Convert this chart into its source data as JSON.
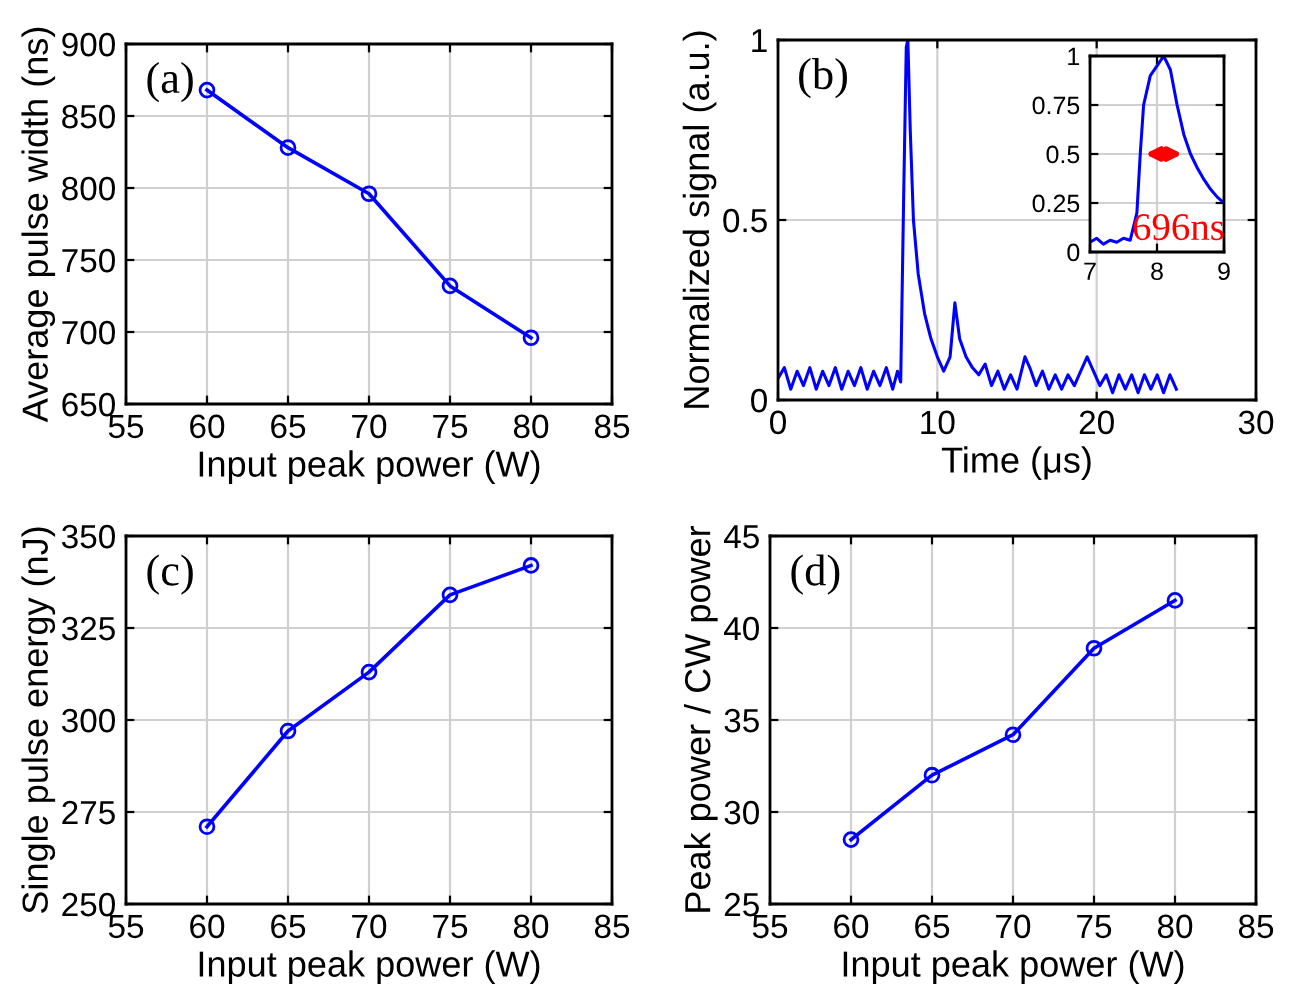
{
  "chart_data": [
    {
      "type": "line",
      "xlabel": "Input peak power (W)",
      "ylabel": "Average pulse width (ns)",
      "x": [
        60,
        65,
        70,
        75,
        80
      ],
      "series": [
        {
          "color": "#0000ff",
          "values": [
            868,
            828,
            796,
            732,
            696
          ]
        }
      ],
      "xlim": [
        55,
        85
      ],
      "xticks": [
        55,
        60,
        65,
        70,
        75,
        80,
        85
      ],
      "ylim": [
        650,
        900
      ],
      "yticks": [
        650,
        700,
        750,
        800,
        850,
        900
      ],
      "grid": true,
      "marker": "circle",
      "annotations": [
        "(a)"
      ]
    },
    {
      "type": "line",
      "xlabel": "Time (μs)",
      "ylabel": "Normalized signal (a.u.)",
      "series": [
        {
          "color": "#0000ff",
          "x": [
            0,
            0.4,
            0.8,
            1.2,
            1.6,
            2,
            2.4,
            2.8,
            3.2,
            3.6,
            4,
            4.4,
            4.8,
            5.2,
            5.6,
            6,
            6.4,
            6.8,
            7.2,
            7.5,
            7.7,
            7.9,
            8.05,
            8.15,
            8.3,
            8.5,
            8.8,
            9.2,
            9.6,
            10,
            10.4,
            10.8,
            11.1,
            11.4,
            11.8,
            12.2,
            12.6,
            13,
            13.4,
            13.8,
            14.2,
            14.6,
            15,
            15.5,
            15.8,
            16.2,
            16.6,
            17,
            17.4,
            17.8,
            18.2,
            18.6,
            19,
            19.4,
            19.8,
            20.2,
            20.6,
            21,
            21.4,
            21.8,
            22.2,
            22.6,
            23,
            23.4,
            23.8,
            24.2,
            24.6,
            25
          ],
          "values": [
            0.06,
            0.09,
            0.03,
            0.08,
            0.04,
            0.09,
            0.03,
            0.08,
            0.04,
            0.09,
            0.03,
            0.08,
            0.04,
            0.09,
            0.03,
            0.08,
            0.04,
            0.09,
            0.03,
            0.08,
            0.05,
            0.6,
            0.98,
            1.0,
            0.75,
            0.5,
            0.35,
            0.24,
            0.17,
            0.12,
            0.08,
            0.12,
            0.27,
            0.17,
            0.12,
            0.09,
            0.07,
            0.1,
            0.04,
            0.08,
            0.03,
            0.07,
            0.03,
            0.12,
            0.09,
            0.04,
            0.08,
            0.03,
            0.07,
            0.03,
            0.07,
            0.04,
            0.08,
            0.12,
            0.08,
            0.04,
            0.07,
            0.02,
            0.07,
            0.03,
            0.07,
            0.02,
            0.07,
            0.03,
            0.07,
            0.02,
            0.07,
            0.03
          ]
        }
      ],
      "xlim": [
        0,
        30
      ],
      "xticks": [
        0,
        10,
        20,
        30
      ],
      "ylim": [
        0,
        1
      ],
      "yticks": [
        0,
        0.5,
        1
      ],
      "grid": true,
      "marker": "none",
      "annotations": [
        "(b)"
      ]
    },
    {
      "type": "line",
      "series": [
        {
          "color": "#0000ff",
          "x": [
            7,
            7.1,
            7.2,
            7.3,
            7.4,
            7.5,
            7.6,
            7.7,
            7.75,
            7.8,
            7.9,
            8.0,
            8.1,
            8.2,
            8.3,
            8.4,
            8.5,
            8.6,
            8.7,
            8.8,
            8.9,
            9
          ],
          "values": [
            0.05,
            0.07,
            0.04,
            0.06,
            0.05,
            0.07,
            0.06,
            0.2,
            0.5,
            0.75,
            0.9,
            0.95,
            1.0,
            0.93,
            0.75,
            0.6,
            0.5,
            0.43,
            0.37,
            0.32,
            0.28,
            0.25
          ]
        }
      ],
      "xlim": [
        7,
        9
      ],
      "xticks": [
        7,
        8,
        9
      ],
      "ylim": [
        0,
        1
      ],
      "yticks": [
        0,
        0.25,
        0.5,
        0.75,
        1
      ],
      "grid": true,
      "marker": "none",
      "annotations": [
        "696ns"
      ]
    },
    {
      "type": "line",
      "xlabel": "Input peak power (W)",
      "ylabel": "Single pulse energy (nJ)",
      "x": [
        60,
        65,
        70,
        75,
        80
      ],
      "series": [
        {
          "color": "#0000ff",
          "values": [
            271,
            297,
            313,
            334,
            342
          ]
        }
      ],
      "xlim": [
        55,
        85
      ],
      "xticks": [
        55,
        60,
        65,
        70,
        75,
        80,
        85
      ],
      "ylim": [
        250,
        350
      ],
      "yticks": [
        250,
        275,
        300,
        325,
        350
      ],
      "grid": true,
      "marker": "circle",
      "annotations": [
        "(c)"
      ]
    },
    {
      "type": "line",
      "xlabel": "Input peak power (W)",
      "ylabel": "Peak power / CW power",
      "x": [
        60,
        65,
        70,
        75,
        80
      ],
      "series": [
        {
          "color": "#0000ff",
          "values": [
            28.5,
            32,
            34.2,
            38.9,
            41.5
          ]
        }
      ],
      "xlim": [
        55,
        85
      ],
      "xticks": [
        55,
        60,
        65,
        70,
        75,
        80,
        85
      ],
      "ylim": [
        25,
        45
      ],
      "yticks": [
        25,
        30,
        35,
        40,
        45
      ],
      "grid": true,
      "marker": "circle",
      "annotations": [
        "(d)"
      ]
    }
  ]
}
